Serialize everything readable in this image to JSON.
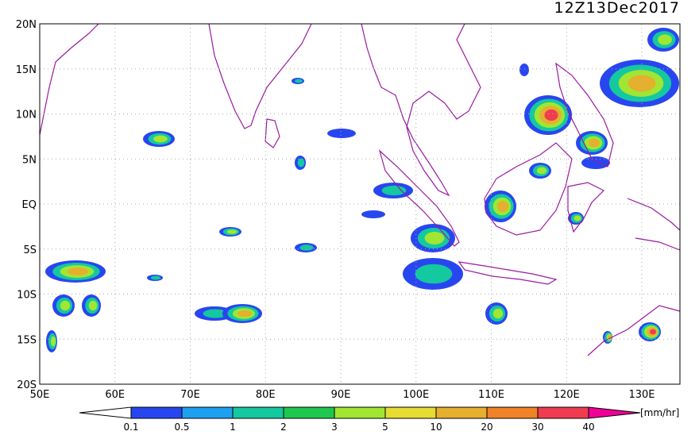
{
  "title": "12Z13Dec2017",
  "lat_labels": [
    "20N",
    "15N",
    "10N",
    "5N",
    "EQ",
    "5S",
    "10S",
    "15S",
    "20S"
  ],
  "lon_labels": [
    "50E",
    "60E",
    "70E",
    "80E",
    "90E",
    "100E",
    "110E",
    "120E",
    "130E"
  ],
  "colorbar": {
    "labels": [
      "0.1",
      "0.5",
      "1",
      "2",
      "3",
      "5",
      "10",
      "20",
      "30",
      "40"
    ],
    "colors": [
      "#ffffff",
      "#2846f0",
      "#1ea0f0",
      "#14c8a0",
      "#1ec850",
      "#a0e632",
      "#e6dc32",
      "#e6af2d",
      "#f08228",
      "#f03c50",
      "#f00096"
    ],
    "unit": "[mm/hr]"
  }
}
